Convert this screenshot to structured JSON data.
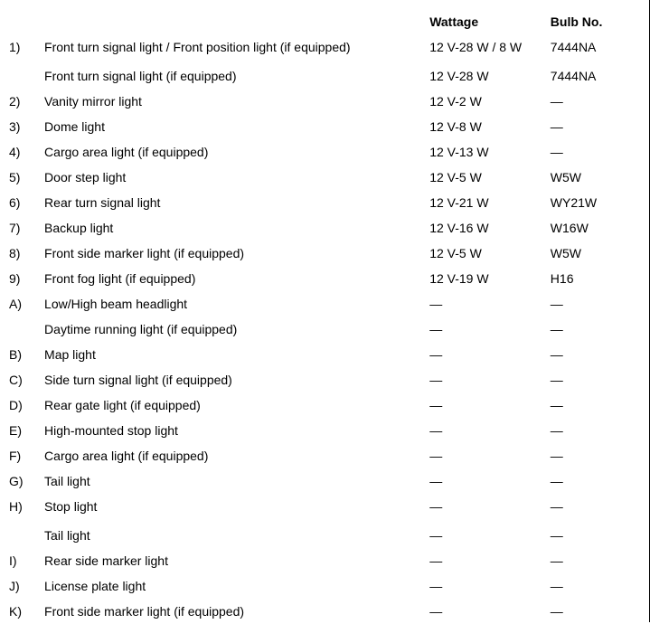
{
  "headers": {
    "wattage": "Wattage",
    "bulb": "Bulb No."
  },
  "rows": [
    {
      "id": "1)",
      "desc": "Front turn signal light / Front position light (if equipped)",
      "wattage": "12 V-28 W / 8 W",
      "bulb": "7444NA"
    },
    {
      "id": "",
      "desc": "Front turn signal light (if equipped)",
      "wattage": "12 V-28 W",
      "bulb": "7444NA",
      "spacer": true
    },
    {
      "id": "2)",
      "desc": "Vanity mirror light",
      "wattage": "12 V-2 W",
      "bulb": "—"
    },
    {
      "id": "3)",
      "desc": "Dome light",
      "wattage": "12 V-8 W",
      "bulb": "—"
    },
    {
      "id": "4)",
      "desc": "Cargo area light (if equipped)",
      "wattage": "12 V-13 W",
      "bulb": "—"
    },
    {
      "id": "5)",
      "desc": "Door step light",
      "wattage": "12 V-5 W",
      "bulb": "W5W"
    },
    {
      "id": "6)",
      "desc": "Rear turn signal light",
      "wattage": "12 V-21 W",
      "bulb": "WY21W"
    },
    {
      "id": "7)",
      "desc": "Backup light",
      "wattage": "12 V-16 W",
      "bulb": "W16W"
    },
    {
      "id": "8)",
      "desc": "Front side marker light (if equipped)",
      "wattage": "12 V-5 W",
      "bulb": "W5W"
    },
    {
      "id": "9)",
      "desc": "Front fog light (if equipped)",
      "wattage": "12 V-19 W",
      "bulb": "H16"
    },
    {
      "id": "A)",
      "desc": "Low/High beam headlight",
      "wattage": "—",
      "bulb": "—"
    },
    {
      "id": "",
      "desc": "Daytime running light (if equipped)",
      "wattage": "—",
      "bulb": "—"
    },
    {
      "id": "B)",
      "desc": "Map light",
      "wattage": "—",
      "bulb": "—"
    },
    {
      "id": "C)",
      "desc": "Side turn signal light (if equipped)",
      "wattage": "—",
      "bulb": "—"
    },
    {
      "id": "D)",
      "desc": "Rear gate light (if equipped)",
      "wattage": "—",
      "bulb": "—"
    },
    {
      "id": "E)",
      "desc": "High-mounted stop light",
      "wattage": "—",
      "bulb": "—"
    },
    {
      "id": "F)",
      "desc": "Cargo area light (if equipped)",
      "wattage": "—",
      "bulb": "—"
    },
    {
      "id": "G)",
      "desc": "Tail light",
      "wattage": "—",
      "bulb": "—"
    },
    {
      "id": "H)",
      "desc": "Stop light",
      "wattage": "—",
      "bulb": "—"
    },
    {
      "id": "",
      "desc": "Tail light",
      "wattage": "—",
      "bulb": "—",
      "spacer": true
    },
    {
      "id": "I)",
      "desc": "Rear side marker light",
      "wattage": "—",
      "bulb": "—"
    },
    {
      "id": "J)",
      "desc": "License plate light",
      "wattage": "—",
      "bulb": "—"
    },
    {
      "id": "K)",
      "desc": "Front side marker light (if equipped)",
      "wattage": "—",
      "bulb": "—"
    }
  ]
}
